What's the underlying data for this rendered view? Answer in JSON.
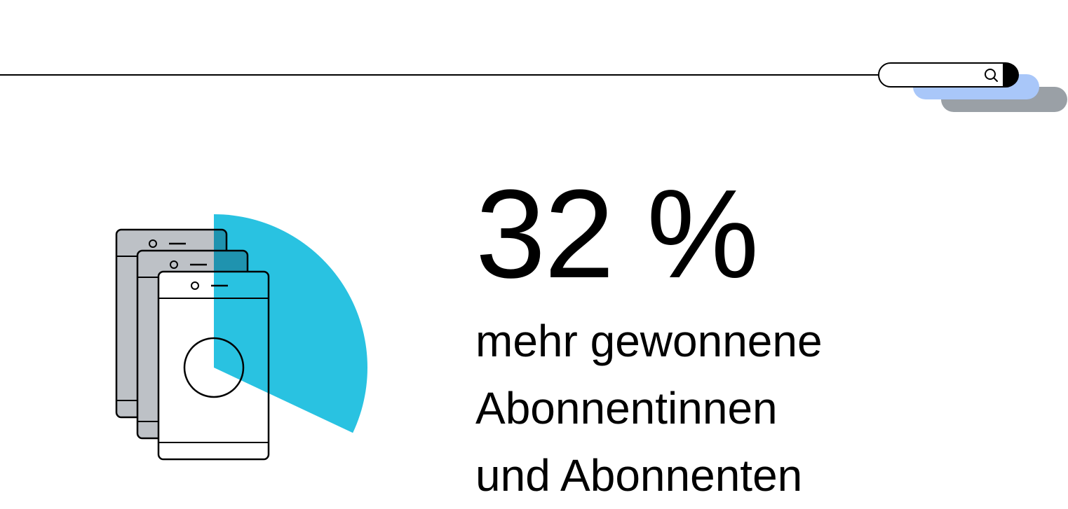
{
  "stat": {
    "value": "32 %",
    "lines": [
      "mehr gewonnene",
      "Abonnentinnen",
      "und Abonnenten"
    ]
  },
  "icons": {
    "search": "search-icon",
    "phones": "mobile-devices-illustration"
  },
  "colors": {
    "accent_cyan": "#25c1e0",
    "accent_blue": "#a9c7f9",
    "accent_gray": "#9aa0a6",
    "phone_gray": "#bdc1c6",
    "text": "#000000",
    "background": "#ffffff"
  },
  "progress_fraction": 0.32
}
